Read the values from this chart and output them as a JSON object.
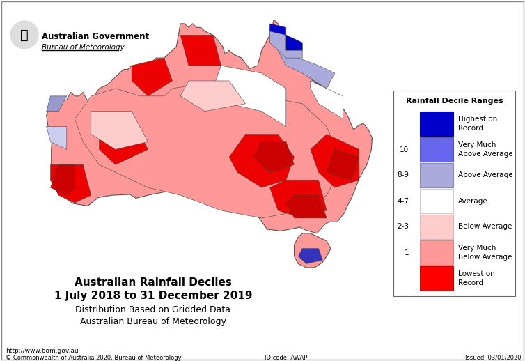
{
  "title_line1": "Australian Rainfall Deciles",
  "title_line2": "1 July 2018 to 31 December 2019",
  "title_line3": "Distribution Based on Gridded Data",
  "title_line4": "Australian Bureau of Meteorology",
  "legend_title": "Rainfall Decile Ranges",
  "legend_items": [
    {
      "label": "Highest on\nRecord",
      "color": "#0000CC",
      "decile": ""
    },
    {
      "label": "Very Much\nAbove Average",
      "color": "#6666FF",
      "decile": "10"
    },
    {
      "label": "Above Average",
      "color": "#AAAAEE",
      "decile": "8-9"
    },
    {
      "label": "Average",
      "color": "#FFFFFF",
      "decile": "4-7"
    },
    {
      "label": "Below Average",
      "color": "#FFCCCC",
      "decile": "2-3"
    },
    {
      "label": "Very Much\nBelow Average",
      "color": "#FF8888",
      "decile": "1"
    },
    {
      "label": "Lowest on\nRecord",
      "color": "#FF0000",
      "decile": ""
    }
  ],
  "gov_name": "Australian Government",
  "bureau_name": "Bureau of Meteorology",
  "url": "http://www.bom.gov.au",
  "copyright": "© Commonwealth of Australia 2020, Bureau of Meteorology",
  "id_code": "ID code: AWAP",
  "issued": "Issued: 03/01/2020",
  "background_color": "#FFFFFF",
  "border_color": "#AAAAAA",
  "fig_width": 7.54,
  "fig_height": 5.18,
  "dpi": 100
}
